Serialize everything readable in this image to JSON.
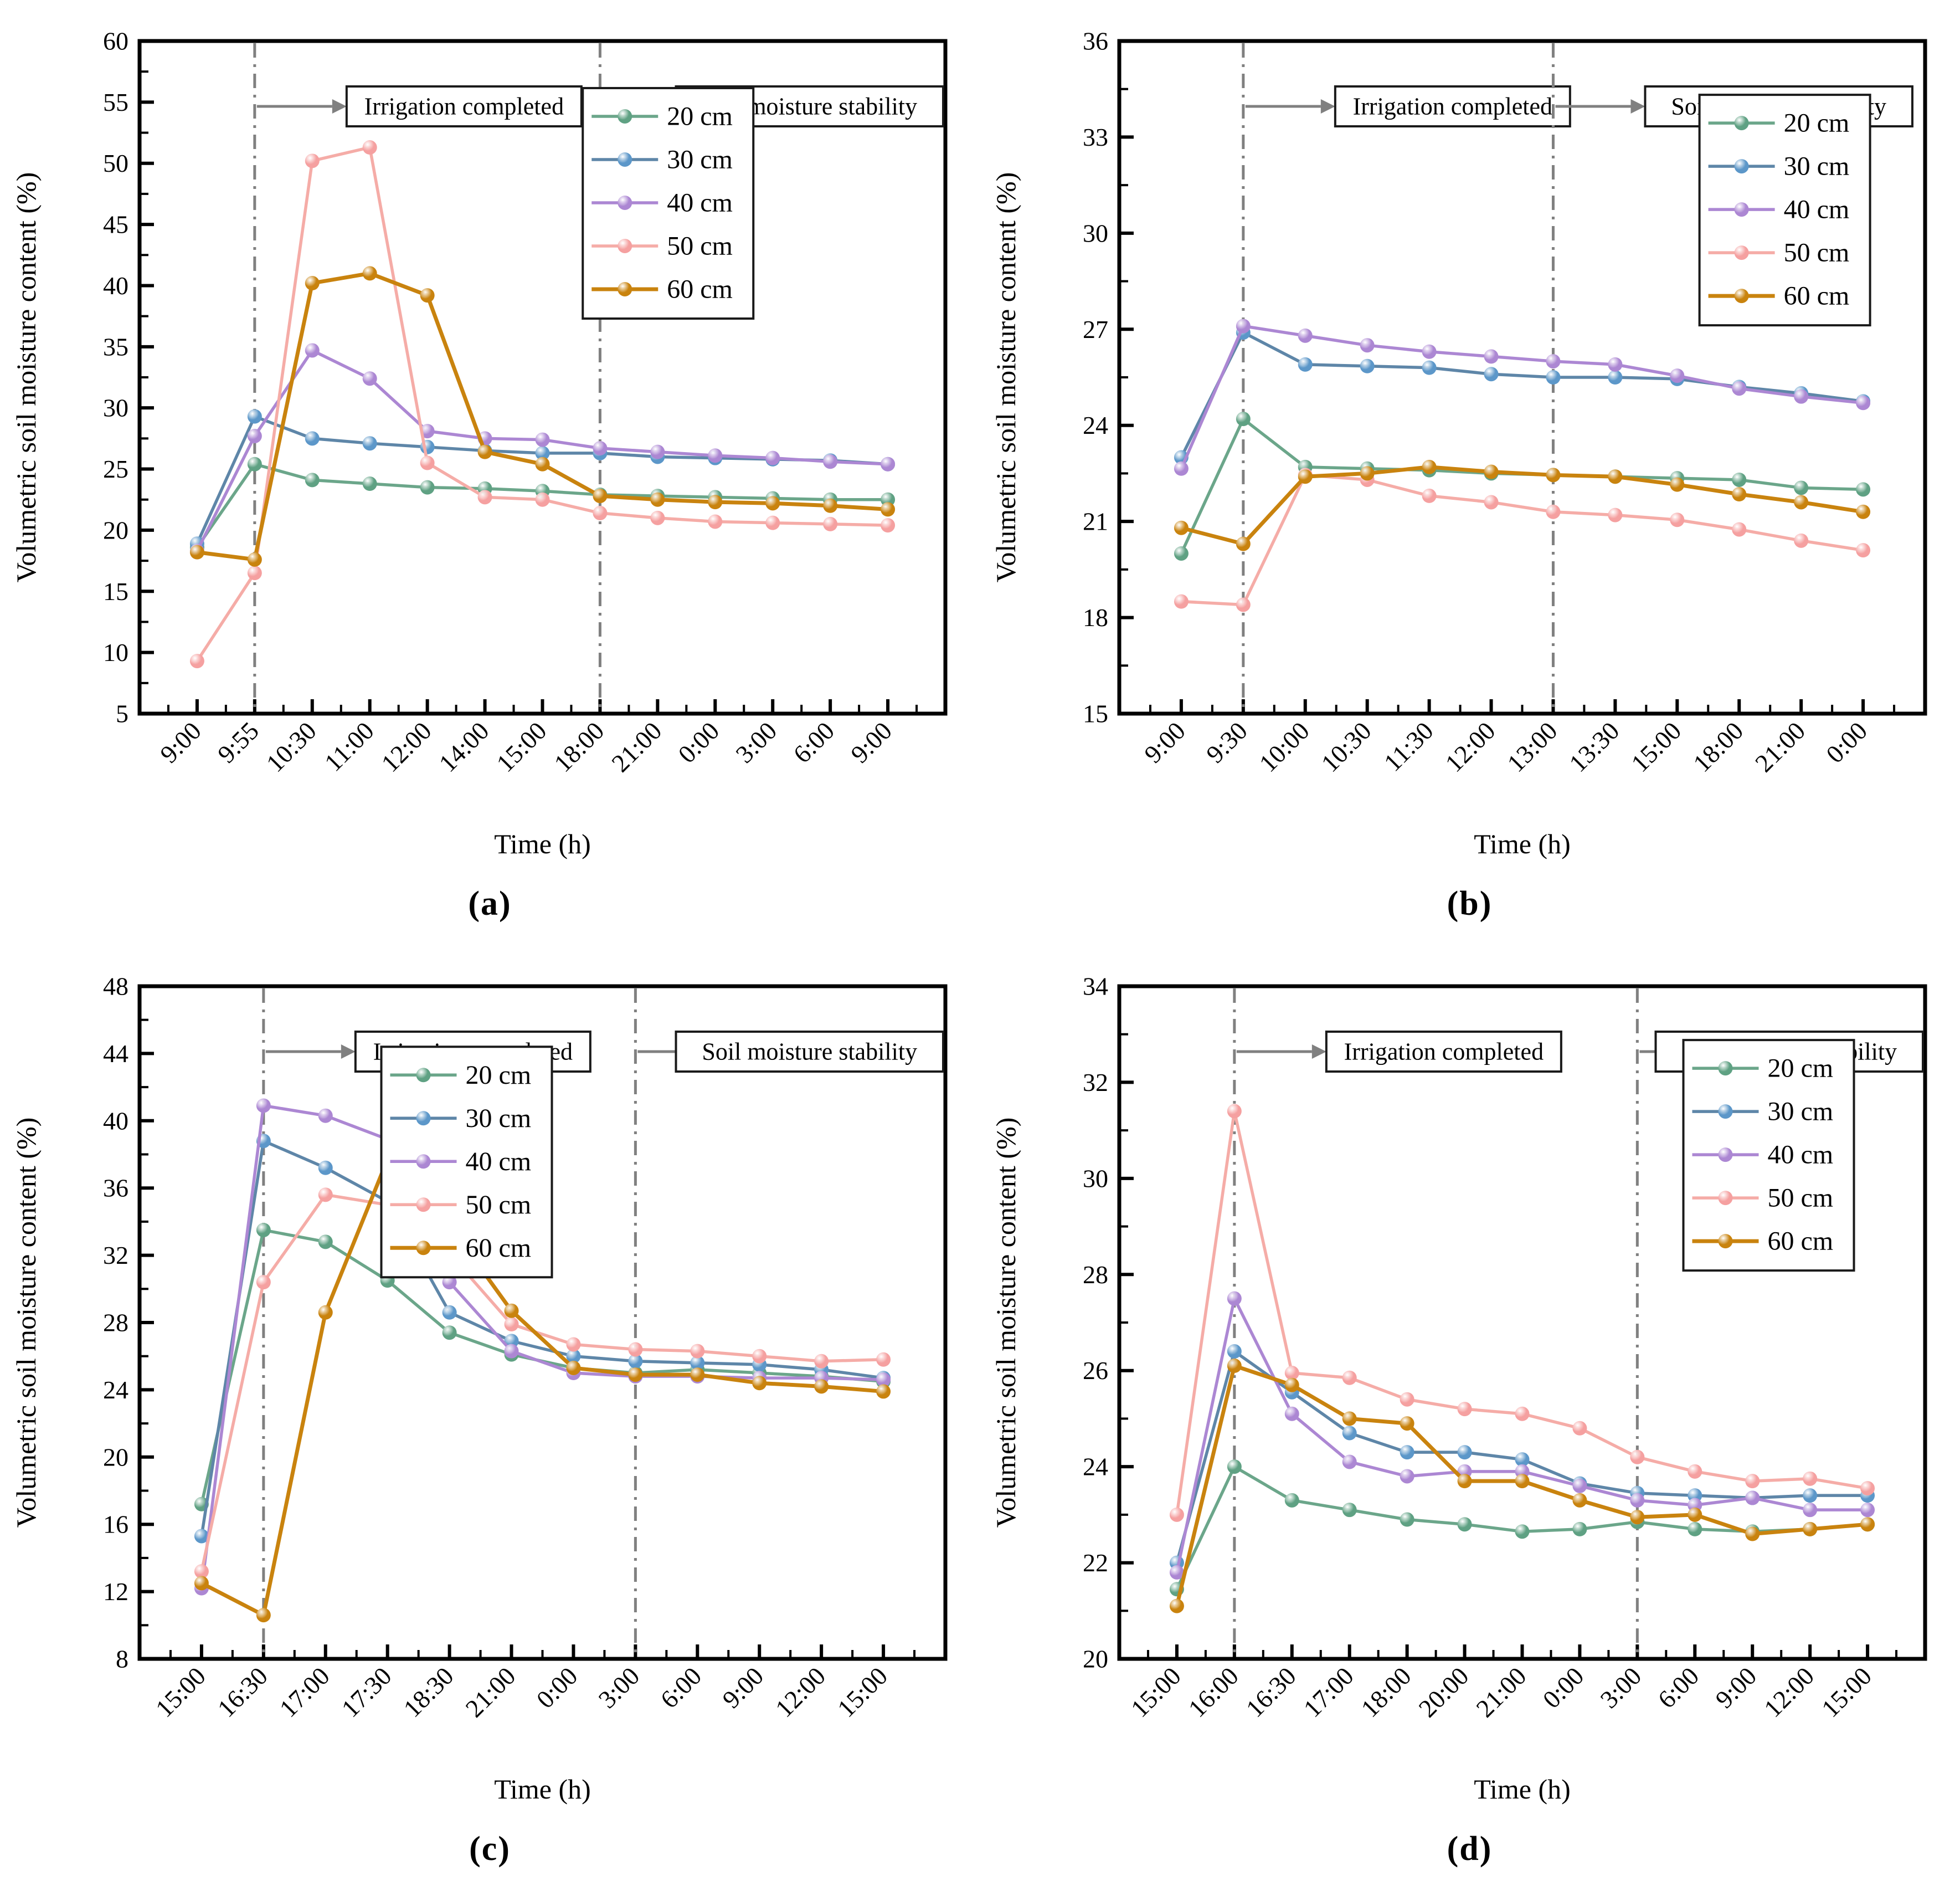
{
  "figure": {
    "x_label": "Time (h)",
    "y_label": "Volumetric soil moisture content (%)",
    "legend": [
      "20 cm",
      "30 cm",
      "40 cm",
      "50 cm",
      "60 cm"
    ],
    "annotation_irrigation": "Irrigation completed",
    "annotation_stability": "Soil moisture stability"
  },
  "colors": {
    "20 cm": {
      "line": "#6BA68A",
      "marker": "#5FA183"
    },
    "30 cm": {
      "line": "#5E86A8",
      "marker": "#5C97C9"
    },
    "40 cm": {
      "line": "#AC87D3",
      "marker": "#AC87D3"
    },
    "50 cm": {
      "line": "#F5ACA7",
      "marker": "#F5A0A0"
    },
    "60 cm": {
      "line": "#C9830E",
      "marker": "#C9830E"
    },
    "annotation_line": "#808080",
    "axis": "#000000"
  },
  "chart_data": [
    {
      "type": "line",
      "caption": "(a)",
      "xlabel": "Time (h)",
      "ylabel": "Volumetric soil moisture content (%)",
      "ylim": [
        5,
        60
      ],
      "ytick_step": 5,
      "grid": false,
      "legend_position": {
        "fx": 0.55,
        "fy": 0.07
      },
      "irrigation_index": 1,
      "stability_index": 7,
      "categories": [
        "9:00",
        "9:55",
        "10:30",
        "11:00",
        "12:00",
        "14:00",
        "15:00",
        "18:00",
        "21:00",
        "0:00",
        "3:00",
        "6:00",
        "9:00"
      ],
      "series": [
        {
          "name": "20 cm",
          "values": [
            18.6,
            25.4,
            24.1,
            23.8,
            23.5,
            23.4,
            23.2,
            22.9,
            22.8,
            22.7,
            22.6,
            22.5,
            22.5
          ]
        },
        {
          "name": "30 cm",
          "values": [
            18.9,
            29.3,
            27.5,
            27.1,
            26.8,
            26.5,
            26.3,
            26.3,
            26.0,
            25.9,
            25.8,
            25.7,
            25.4
          ]
        },
        {
          "name": "40 cm",
          "values": [
            18.3,
            27.7,
            34.7,
            32.4,
            28.1,
            27.5,
            27.4,
            26.7,
            26.4,
            26.1,
            25.9,
            25.6,
            25.4
          ]
        },
        {
          "name": "50 cm",
          "values": [
            9.3,
            16.5,
            50.2,
            51.3,
            25.5,
            22.7,
            22.5,
            21.4,
            21.0,
            20.7,
            20.6,
            20.5,
            20.4
          ]
        },
        {
          "name": "60 cm",
          "values": [
            18.2,
            17.6,
            40.2,
            41.0,
            39.2,
            26.4,
            25.4,
            22.8,
            22.5,
            22.3,
            22.2,
            22.0,
            21.7
          ]
        }
      ]
    },
    {
      "type": "line",
      "caption": "(b)",
      "xlabel": "Time (h)",
      "ylabel": "Volumetric soil moisture content (%)",
      "ylim": [
        15,
        36
      ],
      "ytick_step": 3,
      "grid": false,
      "legend_position": {
        "fx": 0.72,
        "fy": 0.08
      },
      "irrigation_index": 1,
      "stability_index": 6,
      "categories": [
        "9:00",
        "9:30",
        "10:00",
        "10:30",
        "11:30",
        "12:00",
        "13:00",
        "13:30",
        "15:00",
        "18:00",
        "21:00",
        "0:00"
      ],
      "series": [
        {
          "name": "20 cm",
          "values": [
            20.0,
            24.2,
            22.7,
            22.65,
            22.6,
            22.5,
            22.45,
            22.4,
            22.35,
            22.3,
            22.05,
            22.0
          ]
        },
        {
          "name": "30 cm",
          "values": [
            23.0,
            26.9,
            25.9,
            25.85,
            25.8,
            25.6,
            25.5,
            25.5,
            25.45,
            25.2,
            25.0,
            24.75
          ]
        },
        {
          "name": "40 cm",
          "values": [
            22.65,
            27.1,
            26.8,
            26.5,
            26.3,
            26.15,
            26.0,
            25.9,
            25.55,
            25.15,
            24.9,
            24.7
          ]
        },
        {
          "name": "50 cm",
          "values": [
            18.5,
            18.4,
            22.45,
            22.3,
            21.8,
            21.6,
            21.3,
            21.2,
            21.05,
            20.75,
            20.4,
            20.1
          ]
        },
        {
          "name": "60 cm",
          "values": [
            20.8,
            20.3,
            22.4,
            22.5,
            22.7,
            22.55,
            22.45,
            22.4,
            22.15,
            21.85,
            21.6,
            21.3
          ]
        }
      ]
    },
    {
      "type": "line",
      "caption": "(c)",
      "xlabel": "Time (h)",
      "ylabel": "Volumetric soil moisture content (%)",
      "ylim": [
        8,
        48
      ],
      "ytick_step": 4,
      "grid": false,
      "legend_position": {
        "fx": 0.3,
        "fy": 0.09
      },
      "irrigation_index": 1,
      "stability_index": 7,
      "categories": [
        "15:00",
        "16:30",
        "17:00",
        "17:30",
        "18:30",
        "21:00",
        "0:00",
        "3:00",
        "6:00",
        "9:00",
        "12:00",
        "15:00"
      ],
      "series": [
        {
          "name": "20 cm",
          "values": [
            17.2,
            33.5,
            32.8,
            30.5,
            27.4,
            26.1,
            25.3,
            25.0,
            25.2,
            25.0,
            24.8,
            24.5
          ]
        },
        {
          "name": "30 cm",
          "values": [
            15.3,
            38.8,
            37.2,
            35.2,
            28.6,
            26.9,
            26.0,
            25.7,
            25.6,
            25.5,
            25.2,
            24.7
          ]
        },
        {
          "name": "40 cm",
          "values": [
            12.2,
            40.9,
            40.3,
            38.9,
            30.4,
            26.3,
            25.0,
            24.8,
            24.8,
            24.7,
            24.7,
            24.6
          ]
        },
        {
          "name": "50 cm",
          "values": [
            13.2,
            30.4,
            35.6,
            35.0,
            32.1,
            27.9,
            26.7,
            26.4,
            26.3,
            26.0,
            25.7,
            25.8
          ]
        },
        {
          "name": "60 cm",
          "values": [
            12.5,
            10.6,
            28.6,
            37.7,
            33.8,
            28.7,
            25.3,
            24.9,
            24.9,
            24.4,
            24.2,
            23.9
          ]
        }
      ]
    },
    {
      "type": "line",
      "caption": "(d)",
      "xlabel": "Time (h)",
      "ylabel": "Volumetric soil moisture content (%)",
      "ylim": [
        20,
        34
      ],
      "ytick_step": 2,
      "grid": false,
      "legend_position": {
        "fx": 0.7,
        "fy": 0.08
      },
      "irrigation_index": 1,
      "stability_index": 8,
      "categories": [
        "15:00",
        "16:00",
        "16:30",
        "17:00",
        "18:00",
        "20:00",
        "21:00",
        "0:00",
        "3:00",
        "6:00",
        "9:00",
        "12:00",
        "15:00"
      ],
      "series": [
        {
          "name": "20 cm",
          "values": [
            21.45,
            24.0,
            23.3,
            23.1,
            22.9,
            22.8,
            22.65,
            22.7,
            22.85,
            22.7,
            22.65,
            22.7,
            22.8
          ]
        },
        {
          "name": "30 cm",
          "values": [
            22.0,
            26.4,
            25.55,
            24.7,
            24.3,
            24.3,
            24.15,
            23.65,
            23.45,
            23.4,
            23.35,
            23.4,
            23.4
          ]
        },
        {
          "name": "40 cm",
          "values": [
            21.8,
            27.5,
            25.1,
            24.1,
            23.8,
            23.9,
            23.9,
            23.6,
            23.3,
            23.2,
            23.35,
            23.1,
            23.1
          ]
        },
        {
          "name": "50 cm",
          "values": [
            23.0,
            31.4,
            25.95,
            25.85,
            25.4,
            25.2,
            25.1,
            24.8,
            24.2,
            23.9,
            23.7,
            23.75,
            23.55
          ]
        },
        {
          "name": "60 cm",
          "values": [
            21.1,
            26.1,
            25.7,
            25.0,
            24.9,
            23.7,
            23.7,
            23.3,
            22.95,
            23.0,
            22.6,
            22.7,
            22.8
          ]
        }
      ]
    }
  ]
}
